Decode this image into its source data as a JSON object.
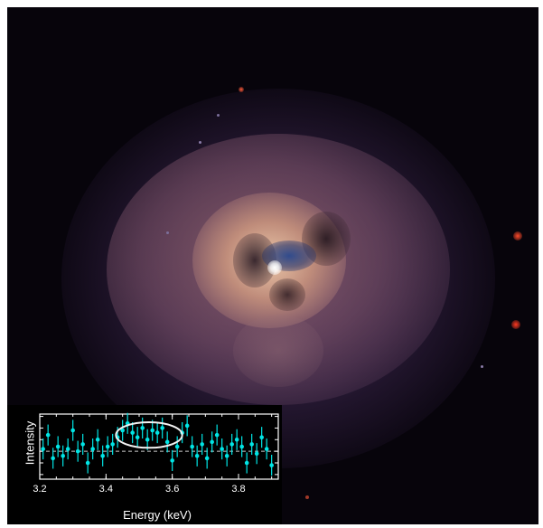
{
  "image": {
    "subject": "Perseus galaxy cluster X-ray image",
    "colors": {
      "background": "#07040b",
      "halo": "#6b4a88",
      "core": "#f0c7a0",
      "cavity": "#1b2a60",
      "accent": "#00e5e5"
    }
  },
  "inset_plot": {
    "chart_data": {
      "type": "scatter",
      "xlabel": "Energy (keV)",
      "ylabel": "Intensity",
      "xlim": [
        3.2,
        3.92
      ],
      "ylim": [
        -1.2,
        1.6
      ],
      "x_ticks": [
        "3.2",
        "3.4",
        "3.6",
        "3.8"
      ],
      "x_tick_values": [
        3.2,
        3.4,
        3.6,
        3.8
      ],
      "baseline": 0,
      "highlight": {
        "shape": "ellipse",
        "x_center": 3.53,
        "y_center": 0.7,
        "x_halfwidth": 0.1,
        "y_halfwidth": 0.55,
        "color": "#f2f2f2"
      },
      "marker_color": "#00e5e5",
      "points": [
        {
          "x": 3.21,
          "y": 0.1,
          "err": 0.45
        },
        {
          "x": 3.225,
          "y": 0.7,
          "err": 0.45
        },
        {
          "x": 3.24,
          "y": -0.3,
          "err": 0.45
        },
        {
          "x": 3.255,
          "y": 0.2,
          "err": 0.45
        },
        {
          "x": 3.27,
          "y": -0.2,
          "err": 0.45
        },
        {
          "x": 3.285,
          "y": 0.1,
          "err": 0.45
        },
        {
          "x": 3.3,
          "y": 0.9,
          "err": 0.45
        },
        {
          "x": 3.315,
          "y": 0.0,
          "err": 0.45
        },
        {
          "x": 3.33,
          "y": 0.3,
          "err": 0.45
        },
        {
          "x": 3.345,
          "y": -0.5,
          "err": 0.45
        },
        {
          "x": 3.36,
          "y": 0.1,
          "err": 0.45
        },
        {
          "x": 3.375,
          "y": 0.5,
          "err": 0.45
        },
        {
          "x": 3.39,
          "y": -0.2,
          "err": 0.45
        },
        {
          "x": 3.405,
          "y": 0.2,
          "err": 0.45
        },
        {
          "x": 3.42,
          "y": 0.3,
          "err": 0.45
        },
        {
          "x": 3.435,
          "y": 0.6,
          "err": 0.45
        },
        {
          "x": 3.45,
          "y": 0.9,
          "err": 0.45
        },
        {
          "x": 3.465,
          "y": 1.2,
          "err": 0.45
        },
        {
          "x": 3.48,
          "y": 0.8,
          "err": 0.45
        },
        {
          "x": 3.495,
          "y": 0.6,
          "err": 0.45
        },
        {
          "x": 3.51,
          "y": 1.0,
          "err": 0.45
        },
        {
          "x": 3.525,
          "y": 0.5,
          "err": 0.45
        },
        {
          "x": 3.54,
          "y": 0.9,
          "err": 0.45
        },
        {
          "x": 3.555,
          "y": 0.8,
          "err": 0.45
        },
        {
          "x": 3.57,
          "y": 1.0,
          "err": 0.45
        },
        {
          "x": 3.585,
          "y": 0.4,
          "err": 0.45
        },
        {
          "x": 3.6,
          "y": -0.4,
          "err": 0.45
        },
        {
          "x": 3.615,
          "y": 0.2,
          "err": 0.45
        },
        {
          "x": 3.63,
          "y": 0.8,
          "err": 0.45
        },
        {
          "x": 3.645,
          "y": 1.1,
          "err": 0.45
        },
        {
          "x": 3.66,
          "y": 0.2,
          "err": 0.45
        },
        {
          "x": 3.675,
          "y": -0.2,
          "err": 0.45
        },
        {
          "x": 3.69,
          "y": 0.3,
          "err": 0.45
        },
        {
          "x": 3.705,
          "y": -0.3,
          "err": 0.45
        },
        {
          "x": 3.72,
          "y": 0.4,
          "err": 0.45
        },
        {
          "x": 3.735,
          "y": 0.7,
          "err": 0.45
        },
        {
          "x": 3.75,
          "y": 0.1,
          "err": 0.45
        },
        {
          "x": 3.765,
          "y": -0.2,
          "err": 0.45
        },
        {
          "x": 3.78,
          "y": 0.3,
          "err": 0.45
        },
        {
          "x": 3.795,
          "y": 0.5,
          "err": 0.45
        },
        {
          "x": 3.81,
          "y": 0.2,
          "err": 0.45
        },
        {
          "x": 3.825,
          "y": -0.5,
          "err": 0.45
        },
        {
          "x": 3.84,
          "y": 0.3,
          "err": 0.45
        },
        {
          "x": 3.855,
          "y": -0.1,
          "err": 0.45
        },
        {
          "x": 3.87,
          "y": 0.6,
          "err": 0.45
        },
        {
          "x": 3.885,
          "y": 0.1,
          "err": 0.45
        },
        {
          "x": 3.9,
          "y": -0.6,
          "err": 0.45
        }
      ]
    }
  }
}
